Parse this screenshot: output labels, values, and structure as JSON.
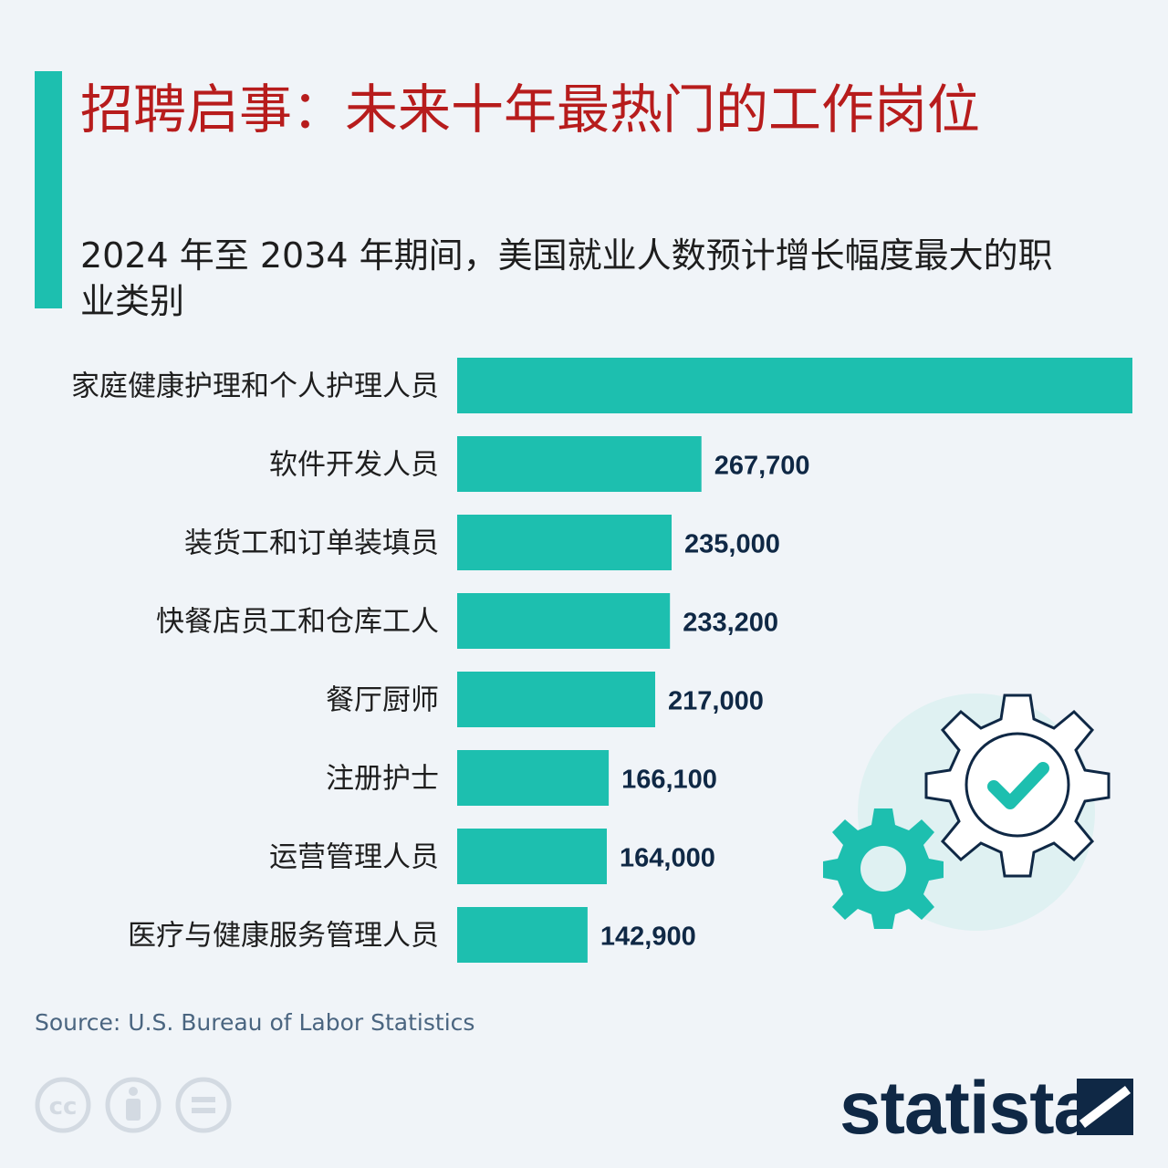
{
  "title": "招聘启事：未来十年最热门的工作岗位",
  "subtitle": "2024 年至 2034 年期间，美国就业人数预计增长幅度最大的职业类别",
  "source": "Source: U.S. Bureau of Labor Statistics",
  "brand": "statista",
  "colors": {
    "accent": "#1dbfaf",
    "title": "#b71c1c",
    "value_text": "#0f2845"
  },
  "icons": [
    "cc-icon",
    "attribution-icon",
    "no-derivatives-icon",
    "statista-logo-icon",
    "gear-check-icon",
    "gear-small-icon"
  ],
  "chart_data": {
    "type": "bar",
    "orientation": "horizontal",
    "categories": [
      "家庭健康护理和个人护理人员",
      "软件开发人员",
      "装货工和订单装填员",
      "快餐店员工和仓库工人",
      "餐厅厨师",
      "注册护士",
      "运营管理人员",
      "医疗与健康服务管理人员"
    ],
    "values": [
      740000,
      267700,
      235000,
      233200,
      217000,
      166100,
      164000,
      142900
    ],
    "value_labels": [
      "",
      "267,700",
      "235,000",
      "233,200",
      "217,000",
      "166,100",
      "164,000",
      "142,900"
    ],
    "xlim": [
      0,
      740000
    ],
    "grid": false,
    "legend": "none"
  }
}
